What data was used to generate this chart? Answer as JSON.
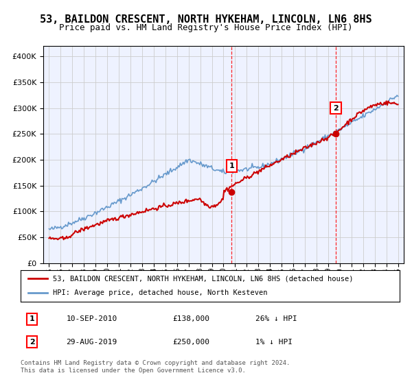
{
  "title": "53, BAILDON CRESCENT, NORTH HYKEHAM, LINCOLN, LN6 8HS",
  "subtitle": "Price paid vs. HM Land Registry's House Price Index (HPI)",
  "ylim": [
    0,
    420000
  ],
  "yticks": [
    0,
    50000,
    100000,
    150000,
    200000,
    250000,
    300000,
    350000,
    400000
  ],
  "ytick_labels": [
    "£0",
    "£50K",
    "£100K",
    "£150K",
    "£200K",
    "£250K",
    "£300K",
    "£350K",
    "£400K"
  ],
  "sale1_value": 138000,
  "sale1_date_str": "10-SEP-2010",
  "sale1_price_str": "£138,000",
  "sale1_hpi_str": "26% ↓ HPI",
  "sale2_value": 250000,
  "sale2_date_str": "29-AUG-2019",
  "sale2_price_str": "£250,000",
  "sale2_hpi_str": "1% ↓ HPI",
  "line_color_red": "#cc0000",
  "line_color_blue": "#6699cc",
  "background_color": "#eef2ff",
  "grid_color": "#cccccc",
  "title_fontsize": 11,
  "subtitle_fontsize": 9,
  "legend_label_red": "53, BAILDON CRESCENT, NORTH HYKEHAM, LINCOLN, LN6 8HS (detached house)",
  "legend_label_blue": "HPI: Average price, detached house, North Kesteven",
  "footer": "Contains HM Land Registry data © Crown copyright and database right 2024.\nThis data is licensed under the Open Government Licence v3.0.",
  "x_start_year": 1995,
  "x_end_year": 2025
}
